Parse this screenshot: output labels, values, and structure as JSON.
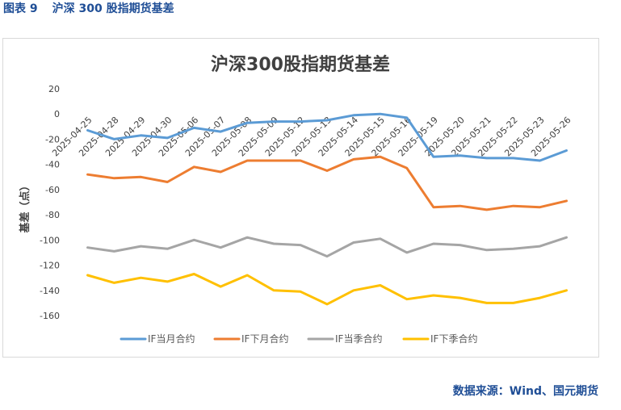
{
  "figure": {
    "label": "图表 9",
    "title": "沪深 300 股指期货基差",
    "source": "数据来源：Wind、国元期货"
  },
  "chart_data": {
    "type": "line",
    "title": "沪深300股指期货基差",
    "xlabel": "",
    "ylabel": "基差（点）",
    "ylim": [
      -160,
      20
    ],
    "yticks": [
      20,
      0,
      -20,
      -40,
      -60,
      -80,
      -100,
      -120,
      -140,
      -160
    ],
    "grid": false,
    "legend_position": "bottom",
    "categories": [
      "2025-04-25",
      "2025-04-28",
      "2025-04-29",
      "2025-04-30",
      "2025-05-06",
      "2025-05-07",
      "2025-05-08",
      "2025-05-09",
      "2025-05-12",
      "2025-05-13",
      "2025-05-14",
      "2025-05-15",
      "2025-05-16",
      "2025-05-19",
      "2025-05-20",
      "2025-05-21",
      "2025-05-22",
      "2025-05-23",
      "2025-05-26"
    ],
    "series": [
      {
        "name": "IF当月合约",
        "color": "#5b9bd5",
        "values": [
          -13,
          -20,
          -17,
          -19,
          -11,
          -14,
          -7,
          -6,
          -6,
          -5,
          -1,
          0,
          -3,
          -34,
          -33,
          -35,
          -35,
          -37,
          -29
        ]
      },
      {
        "name": "IF下月合约",
        "color": "#ed7d31",
        "values": [
          -48,
          -51,
          -50,
          -54,
          -42,
          -46,
          -37,
          -37,
          -37,
          -45,
          -36,
          -34,
          -43,
          -74,
          -73,
          -76,
          -73,
          -74,
          -69
        ]
      },
      {
        "name": "IF当季合约",
        "color": "#a5a5a5",
        "values": [
          -106,
          -109,
          -105,
          -107,
          -100,
          -106,
          -98,
          -103,
          -104,
          -113,
          -102,
          -99,
          -110,
          -103,
          -104,
          -108,
          -107,
          -105,
          -98
        ]
      },
      {
        "name": "IF下季合约",
        "color": "#ffc000",
        "values": [
          -128,
          -134,
          -130,
          -133,
          -127,
          -137,
          -128,
          -140,
          -141,
          -151,
          -140,
          -136,
          -147,
          -144,
          -146,
          -150,
          -150,
          -146,
          -140
        ]
      }
    ]
  }
}
